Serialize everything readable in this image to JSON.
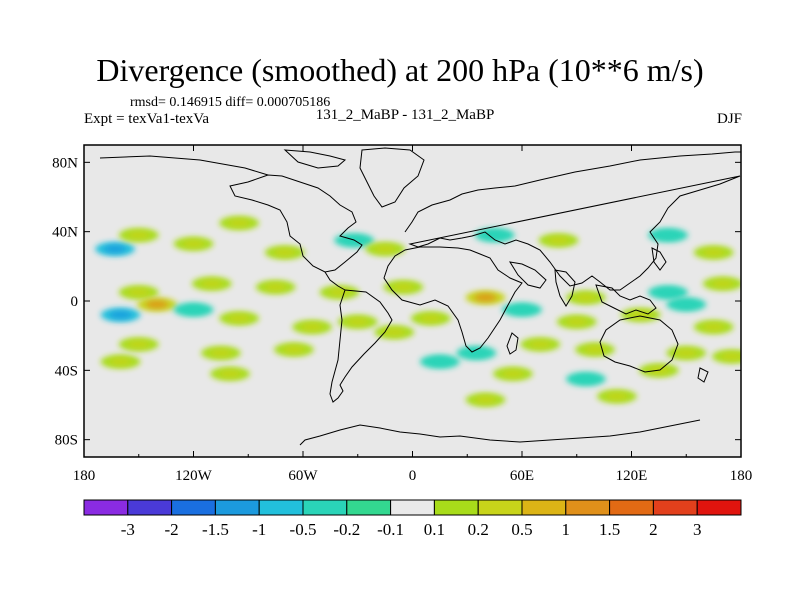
{
  "title": "Divergence (smoothed) at 200 hPa (10**6 m/s)",
  "subtitle": {
    "stats": "rmsd= 0.146915 diff= 0.000705186",
    "left": "Expt = texVa1-texVa",
    "center": "131_2_MaBP - 131_2_MaBP",
    "right": "DJF"
  },
  "chart_data": {
    "type": "heatmap",
    "title": "Divergence (smoothed) at 200 hPa (10**6 m/s)",
    "xlabel": "",
    "ylabel": "",
    "xlim": [
      -180,
      180
    ],
    "ylim": [
      -90,
      90
    ],
    "x_ticks": [
      {
        "value": -180,
        "label": "180"
      },
      {
        "value": -120,
        "label": "120W"
      },
      {
        "value": -60,
        "label": "60W"
      },
      {
        "value": 0,
        "label": "0"
      },
      {
        "value": 60,
        "label": "60E"
      },
      {
        "value": 120,
        "label": "120E"
      },
      {
        "value": 180,
        "label": "180"
      }
    ],
    "y_ticks": [
      {
        "value": 80,
        "label": "80N"
      },
      {
        "value": 40,
        "label": "40N"
      },
      {
        "value": 0,
        "label": "0"
      },
      {
        "value": -40,
        "label": "40S"
      },
      {
        "value": -80,
        "label": "80S"
      }
    ],
    "background_color": "#e8e8e8",
    "colorbar": {
      "labels": [
        "-3",
        "-2",
        "-1.5",
        "-1",
        "-0.5",
        "-0.2",
        "-0.1",
        "0.1",
        "0.2",
        "0.5",
        "1",
        "1.5",
        "2",
        "3"
      ],
      "colors": [
        "#8a2be2",
        "#4a3ad8",
        "#1a6fe0",
        "#1c9ade",
        "#22c0dc",
        "#2ad4b8",
        "#33d890",
        "#eaeaea",
        "#a8dc1a",
        "#c8d41a",
        "#dcb416",
        "#e0901a",
        "#e26a14",
        "#e2401c",
        "#e0140e"
      ]
    },
    "anomalies": [
      {
        "lon": -163,
        "lat": 30,
        "value": -0.5
      },
      {
        "lon": -150,
        "lat": 38,
        "value": 0.2
      },
      {
        "lon": -120,
        "lat": 33,
        "value": 0.2
      },
      {
        "lon": -95,
        "lat": 45,
        "value": 0.2
      },
      {
        "lon": -70,
        "lat": 28,
        "value": 0.2
      },
      {
        "lon": -32,
        "lat": 35,
        "value": -0.2
      },
      {
        "lon": -15,
        "lat": 30,
        "value": 0.2
      },
      {
        "lon": 45,
        "lat": 38,
        "value": -0.2
      },
      {
        "lon": 80,
        "lat": 35,
        "value": 0.2
      },
      {
        "lon": 140,
        "lat": 38,
        "value": -0.2
      },
      {
        "lon": 165,
        "lat": 28,
        "value": 0.2
      },
      {
        "lon": -150,
        "lat": 5,
        "value": 0.2
      },
      {
        "lon": -110,
        "lat": 10,
        "value": 0.2
      },
      {
        "lon": -75,
        "lat": 8,
        "value": 0.2
      },
      {
        "lon": -40,
        "lat": 5,
        "value": 0.2
      },
      {
        "lon": -5,
        "lat": 8,
        "value": 0.2
      },
      {
        "lon": 40,
        "lat": 2,
        "value": 0.5
      },
      {
        "lon": 95,
        "lat": 2,
        "value": 0.2
      },
      {
        "lon": 140,
        "lat": 5,
        "value": -0.2
      },
      {
        "lon": 170,
        "lat": 10,
        "value": 0.2
      },
      {
        "lon": -160,
        "lat": -8,
        "value": -0.5
      },
      {
        "lon": -140,
        "lat": -2,
        "value": 0.5
      },
      {
        "lon": -120,
        "lat": -5,
        "value": -0.2
      },
      {
        "lon": -95,
        "lat": -10,
        "value": 0.2
      },
      {
        "lon": -55,
        "lat": -15,
        "value": 0.2
      },
      {
        "lon": -30,
        "lat": -12,
        "value": 0.2
      },
      {
        "lon": -10,
        "lat": -18,
        "value": 0.2
      },
      {
        "lon": 10,
        "lat": -10,
        "value": 0.2
      },
      {
        "lon": 60,
        "lat": -5,
        "value": -0.2
      },
      {
        "lon": 90,
        "lat": -12,
        "value": 0.2
      },
      {
        "lon": 125,
        "lat": -8,
        "value": 0.2
      },
      {
        "lon": 150,
        "lat": -2,
        "value": -0.2
      },
      {
        "lon": 165,
        "lat": -15,
        "value": 0.2
      },
      {
        "lon": -150,
        "lat": -25,
        "value": 0.2
      },
      {
        "lon": -105,
        "lat": -30,
        "value": 0.2
      },
      {
        "lon": -65,
        "lat": -28,
        "value": 0.2
      },
      {
        "lon": 35,
        "lat": -30,
        "value": -0.2
      },
      {
        "lon": 70,
        "lat": -25,
        "value": 0.2
      },
      {
        "lon": 100,
        "lat": -28,
        "value": 0.2
      },
      {
        "lon": 150,
        "lat": -30,
        "value": 0.2
      },
      {
        "lon": 175,
        "lat": -32,
        "value": 0.2
      },
      {
        "lon": -160,
        "lat": -35,
        "value": 0.2
      },
      {
        "lon": -100,
        "lat": -42,
        "value": 0.2
      },
      {
        "lon": 15,
        "lat": -35,
        "value": -0.2
      },
      {
        "lon": 55,
        "lat": -42,
        "value": 0.2
      },
      {
        "lon": 95,
        "lat": -45,
        "value": -0.2
      },
      {
        "lon": 135,
        "lat": -40,
        "value": 0.2
      },
      {
        "lon": 40,
        "lat": -57,
        "value": 0.2
      },
      {
        "lon": 112,
        "lat": -55,
        "value": 0.2
      }
    ]
  }
}
